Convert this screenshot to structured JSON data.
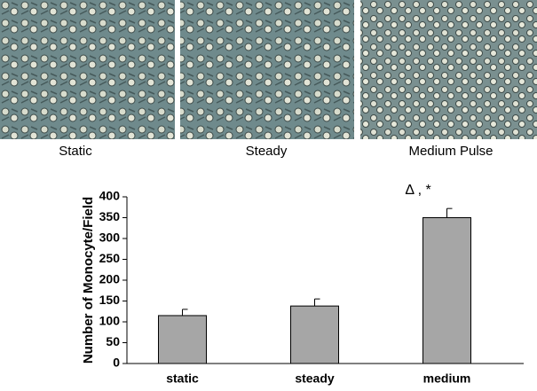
{
  "panels": {
    "captions": [
      "Static",
      "Steady",
      "Medium Pulse"
    ]
  },
  "chart_data": {
    "type": "bar",
    "y_label": "Number of Monocyte/Field",
    "categories": [
      "static",
      "steady",
      "medium"
    ],
    "values": [
      115,
      138,
      350
    ],
    "errors": [
      15,
      17,
      22
    ],
    "color": "#a6a6a6",
    "annotation": "Δ , *",
    "ylim": [
      0,
      400
    ],
    "yticks": [
      0,
      50,
      100,
      150,
      200,
      250,
      300,
      350,
      400
    ]
  }
}
